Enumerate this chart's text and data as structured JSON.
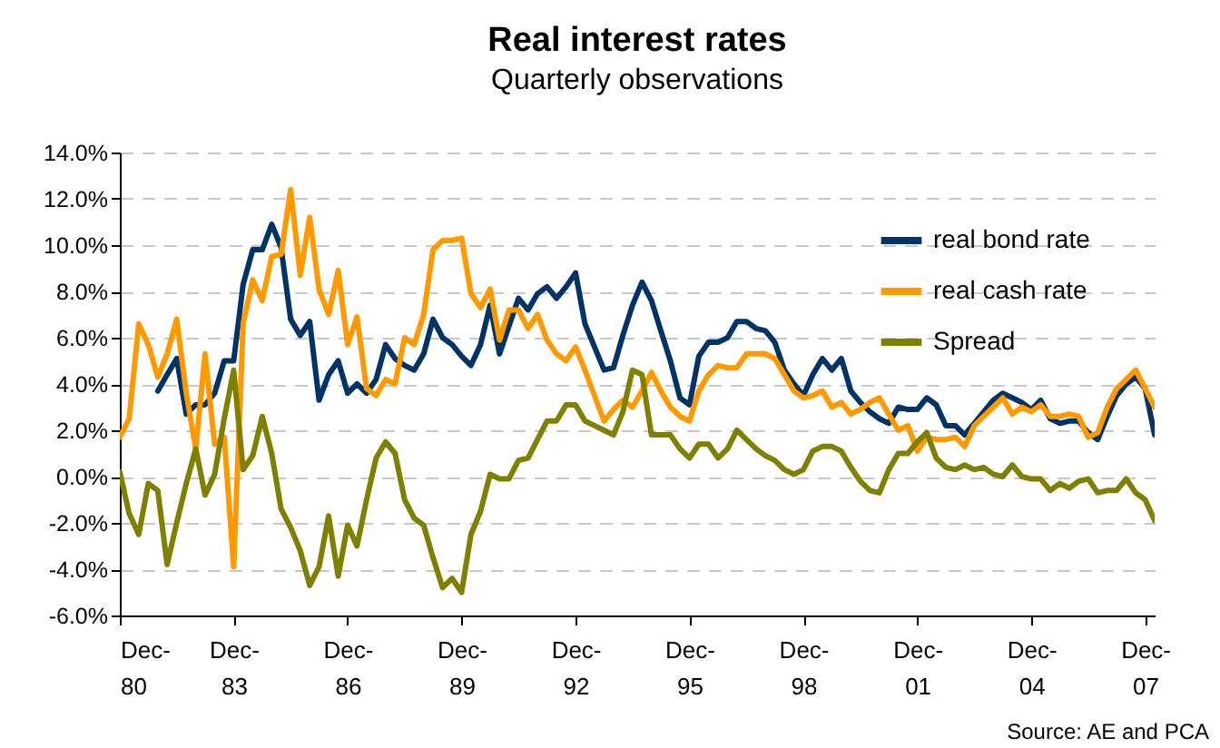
{
  "chart_data": {
    "type": "line",
    "title": "Real interest rates",
    "subtitle": "Quarterly observations",
    "x": [
      "1980-12",
      "1981-03",
      "1981-06",
      "1981-09",
      "1981-12",
      "1982-03",
      "1982-06",
      "1982-09",
      "1982-12",
      "1983-03",
      "1983-06",
      "1983-09",
      "1983-12",
      "1984-03",
      "1984-06",
      "1984-09",
      "1984-12",
      "1985-03",
      "1985-06",
      "1985-09",
      "1985-12",
      "1986-03",
      "1986-06",
      "1986-09",
      "1986-12",
      "1987-03",
      "1987-06",
      "1987-09",
      "1987-12",
      "1988-03",
      "1988-06",
      "1988-09",
      "1988-12",
      "1989-03",
      "1989-06",
      "1989-09",
      "1989-12",
      "1990-03",
      "1990-06",
      "1990-09",
      "1990-12",
      "1991-03",
      "1991-06",
      "1991-09",
      "1991-12",
      "1992-03",
      "1992-06",
      "1992-09",
      "1992-12",
      "1993-03",
      "1993-06",
      "1993-09",
      "1993-12",
      "1994-03",
      "1994-06",
      "1994-09",
      "1994-12",
      "1995-03",
      "1995-06",
      "1995-09",
      "1995-12",
      "1996-03",
      "1996-06",
      "1996-09",
      "1996-12",
      "1997-03",
      "1997-06",
      "1997-09",
      "1997-12",
      "1998-03",
      "1998-06",
      "1998-09",
      "1998-12",
      "1999-03",
      "1999-06",
      "1999-09",
      "1999-12",
      "2000-03",
      "2000-06",
      "2000-09",
      "2000-12",
      "2001-03",
      "2001-06",
      "2001-09",
      "2001-12",
      "2002-03",
      "2002-06",
      "2002-09",
      "2002-12",
      "2003-03",
      "2003-06",
      "2003-09",
      "2003-12",
      "2004-03",
      "2004-06",
      "2004-09",
      "2004-12",
      "2005-03",
      "2005-06",
      "2005-09",
      "2005-12",
      "2006-03",
      "2006-06",
      "2006-09",
      "2006-12",
      "2007-03",
      "2007-06",
      "2007-09",
      "2007-12",
      "2008-03"
    ],
    "series": [
      {
        "name": "real bond rate",
        "color": "#003366",
        "values": [
          null,
          null,
          null,
          null,
          3.7,
          4.4,
          5.1,
          2.7,
          3.1,
          3.1,
          3.6,
          5.0,
          5.0,
          8.3,
          9.8,
          9.8,
          10.9,
          9.9,
          6.8,
          6.1,
          6.7,
          3.3,
          4.4,
          5.0,
          3.6,
          4.0,
          3.6,
          4.2,
          5.7,
          5.1,
          4.8,
          4.6,
          5.3,
          6.8,
          6.0,
          5.7,
          5.2,
          4.8,
          5.7,
          7.4,
          5.3,
          6.5,
          7.7,
          7.2,
          7.9,
          8.2,
          7.7,
          8.2,
          8.8,
          6.6,
          5.6,
          4.6,
          4.7,
          6.1,
          7.4,
          8.4,
          7.6,
          6.3,
          5.0,
          3.4,
          3.1,
          5.2,
          5.8,
          5.8,
          6.0,
          6.7,
          6.7,
          6.4,
          6.3,
          5.8,
          4.6,
          4.0,
          3.5,
          4.4,
          5.1,
          4.6,
          5.1,
          3.7,
          3.2,
          2.8,
          2.5,
          2.3,
          3.0,
          2.9,
          2.9,
          3.4,
          3.1,
          2.2,
          2.2,
          1.8,
          2.3,
          2.8,
          3.3,
          3.6,
          3.4,
          3.2,
          2.9,
          3.3,
          2.5,
          2.3,
          2.4,
          2.4,
          1.9,
          1.6,
          2.6,
          3.5,
          4.0,
          4.3,
          3.8,
          1.8
        ]
      },
      {
        "name": "real cash rate",
        "color": "#ff9900",
        "values": [
          1.7,
          2.5,
          6.6,
          5.7,
          4.3,
          5.3,
          6.8,
          3.6,
          1.2,
          5.3,
          1.4,
          1.7,
          -3.9,
          6.6,
          8.5,
          7.6,
          9.5,
          9.6,
          12.4,
          8.7,
          11.2,
          8.1,
          7.0,
          8.9,
          5.7,
          6.9,
          3.8,
          3.5,
          4.2,
          4.0,
          6.0,
          5.7,
          7.0,
          9.8,
          10.2,
          10.2,
          10.3,
          7.9,
          7.3,
          8.1,
          5.9,
          7.2,
          7.2,
          6.4,
          7.0,
          5.9,
          5.3,
          5.0,
          5.6,
          4.6,
          3.5,
          2.4,
          2.9,
          3.3,
          3.0,
          3.7,
          4.5,
          3.7,
          3.0,
          2.6,
          2.4,
          3.7,
          4.4,
          4.8,
          4.7,
          4.7,
          5.3,
          5.3,
          5.3,
          5.1,
          4.4,
          3.7,
          3.4,
          3.5,
          3.7,
          3.0,
          3.2,
          2.7,
          2.9,
          3.2,
          3.4,
          2.7,
          2.0,
          2.2,
          1.1,
          1.7,
          1.6,
          1.6,
          1.7,
          1.3,
          2.2,
          2.6,
          3.0,
          3.4,
          2.7,
          3.0,
          2.8,
          3.1,
          2.6,
          2.6,
          2.7,
          2.6,
          1.7,
          1.9,
          3.0,
          3.8,
          4.2,
          4.6,
          3.8,
          3.0
        ]
      },
      {
        "name": "Spread",
        "color": "#808000",
        "values": [
          0.2,
          -1.6,
          -2.5,
          -0.3,
          -0.6,
          -3.8,
          -2.0,
          -0.3,
          1.2,
          -0.8,
          0.1,
          2.5,
          4.6,
          0.3,
          0.9,
          2.6,
          1.0,
          -1.4,
          -2.2,
          -3.2,
          -4.7,
          -3.9,
          -1.7,
          -4.3,
          -2.1,
          -3.0,
          -1.0,
          0.8,
          1.5,
          1.0,
          -1.0,
          -1.8,
          -2.1,
          -3.5,
          -4.8,
          -4.4,
          -5.0,
          -2.5,
          -1.5,
          0.1,
          -0.1,
          -0.1,
          0.7,
          0.8,
          1.6,
          2.4,
          2.4,
          3.1,
          3.1,
          2.4,
          2.2,
          2.0,
          1.8,
          2.8,
          4.6,
          4.4,
          1.8,
          1.8,
          1.8,
          1.2,
          0.8,
          1.4,
          1.4,
          0.8,
          1.2,
          2.0,
          1.6,
          1.2,
          0.9,
          0.7,
          0.3,
          0.1,
          0.3,
          1.1,
          1.3,
          1.3,
          1.1,
          0.4,
          -0.2,
          -0.6,
          -0.7,
          0.3,
          1.0,
          1.0,
          1.5,
          1.9,
          0.8,
          0.4,
          0.3,
          0.5,
          0.3,
          0.4,
          0.1,
          0.0,
          0.5,
          0.0,
          -0.1,
          -0.1,
          -0.6,
          -0.3,
          -0.5,
          -0.2,
          -0.1,
          -0.7,
          -0.6,
          -0.6,
          -0.1,
          -0.7,
          -1.0,
          -1.9
        ]
      }
    ],
    "xlim": [
      "1980-12",
      "2008-03"
    ],
    "xticks": [
      {
        "value": "1980-12",
        "label": "Dec-80"
      },
      {
        "value": "1983-12",
        "label": "Dec-83"
      },
      {
        "value": "1986-12",
        "label": "Dec-86"
      },
      {
        "value": "1989-12",
        "label": "Dec-89"
      },
      {
        "value": "1992-12",
        "label": "Dec-92"
      },
      {
        "value": "1995-12",
        "label": "Dec-95"
      },
      {
        "value": "1998-12",
        "label": "Dec-98"
      },
      {
        "value": "2001-12",
        "label": "Dec-01"
      },
      {
        "value": "2004-12",
        "label": "Dec-04"
      },
      {
        "value": "2007-12",
        "label": "Dec-07"
      }
    ],
    "ylim": [
      -6,
      14
    ],
    "yticks": [
      {
        "value": -6,
        "label": "-6.0%"
      },
      {
        "value": -4,
        "label": "-4.0%"
      },
      {
        "value": -2,
        "label": "-2.0%"
      },
      {
        "value": 0,
        "label": "0.0%"
      },
      {
        "value": 2,
        "label": "2.0%"
      },
      {
        "value": 4,
        "label": "4.0%"
      },
      {
        "value": 6,
        "label": "6.0%"
      },
      {
        "value": 8,
        "label": "8.0%"
      },
      {
        "value": 10,
        "label": "10.0%"
      },
      {
        "value": 12,
        "label": "12.0%"
      },
      {
        "value": 14,
        "label": "14.0%"
      }
    ],
    "grid": "y",
    "legend": "top right",
    "annotations": [
      "Source: AE and PCA"
    ]
  }
}
